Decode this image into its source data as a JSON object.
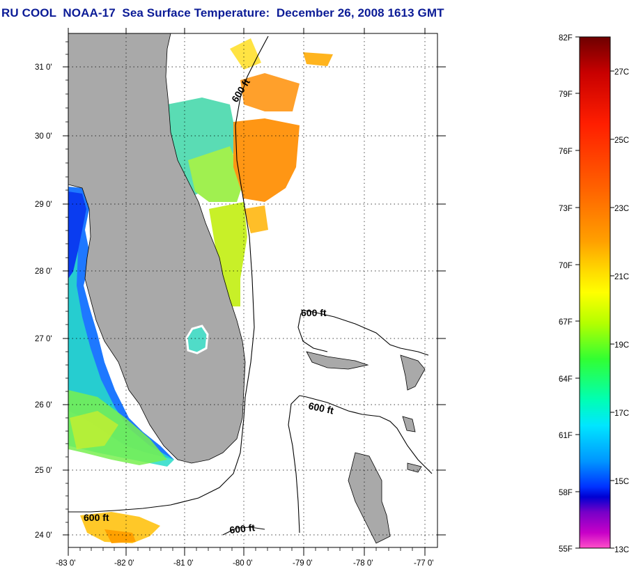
{
  "title": "RU COOL  NOAA-17  Sea Surface Temperature:  December 26, 2008 1613 GMT",
  "map": {
    "lat_labels": [
      "31 0'",
      "30 0'",
      "29 0'",
      "28 0'",
      "27 0'",
      "26 0'",
      "25 0'",
      "24 0'"
    ],
    "lon_labels": [
      "-83 0'",
      "-82 0'",
      "-81 0'",
      "-80 0'",
      "-79 0'",
      "-78 0'",
      "-77 0'"
    ],
    "contour_label": "600 ft",
    "colors": {
      "land": "#a9a9a9",
      "title": "#0b1b96",
      "frame": "#000000"
    }
  },
  "colorbar": {
    "fahrenheit_labels": [
      "82F",
      "79F",
      "76F",
      "73F",
      "70F",
      "67F",
      "64F",
      "61F",
      "58F",
      "55F"
    ],
    "celsius_labels": [
      "27C",
      "25C",
      "23C",
      "21C",
      "19C",
      "17C",
      "15C",
      "13C"
    ],
    "colors_top_to_bottom": [
      "#6e0000",
      "#c80000",
      "#ff1e00",
      "#ff6400",
      "#ffa000",
      "#ffdc00",
      "#ffff00",
      "#b4ff00",
      "#32ff32",
      "#00ffb4",
      "#00e6ff",
      "#0096ff",
      "#0032ff",
      "#0000d2",
      "#7800c8",
      "#c800c8",
      "#ff50c8"
    ]
  }
}
